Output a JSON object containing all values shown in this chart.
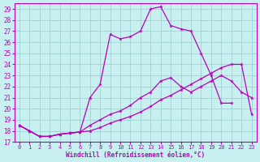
{
  "xlabel": "Windchill (Refroidissement éolien,°C)",
  "ylabel": "",
  "bg_color": "#c8f0f0",
  "line_color": "#bb00bb",
  "xlim": [
    -0.5,
    23.5
  ],
  "ylim": [
    17,
    29.5
  ],
  "yticks": [
    17,
    18,
    19,
    20,
    21,
    22,
    23,
    24,
    25,
    26,
    27,
    28,
    29
  ],
  "xticks": [
    0,
    1,
    2,
    3,
    4,
    5,
    6,
    7,
    8,
    9,
    10,
    11,
    12,
    13,
    14,
    15,
    16,
    17,
    18,
    19,
    20,
    21,
    22,
    23
  ],
  "grid_color": "#99cccc",
  "series": [
    {
      "x": [
        0,
        1,
        2,
        3,
        4,
        5,
        6,
        7,
        8,
        9,
        10,
        11,
        12,
        13,
        14,
        15,
        16,
        17,
        18,
        19,
        20,
        21,
        22,
        23
      ],
      "y": [
        18.5,
        18.0,
        17.5,
        17.5,
        17.7,
        17.8,
        17.9,
        21.0,
        22.2,
        26.7,
        26.3,
        26.5,
        27.0,
        29.0,
        29.2,
        27.5,
        27.2,
        27.0,
        25.0,
        23.0,
        20.5,
        20.5,
        null,
        null
      ]
    },
    {
      "x": [
        0,
        1,
        2,
        3,
        4,
        5,
        6,
        7,
        8,
        9,
        10,
        11,
        12,
        13,
        14,
        15,
        16,
        17,
        18,
        19,
        20,
        21,
        22,
        23
      ],
      "y": [
        18.5,
        18.0,
        17.5,
        17.5,
        17.7,
        17.8,
        17.9,
        18.5,
        19.0,
        19.5,
        19.8,
        20.3,
        21.0,
        21.5,
        22.5,
        22.8,
        22.0,
        21.5,
        22.0,
        22.5,
        23.0,
        22.5,
        21.5,
        21.0
      ]
    },
    {
      "x": [
        0,
        1,
        2,
        3,
        4,
        5,
        6,
        7,
        8,
        9,
        10,
        11,
        12,
        13,
        14,
        15,
        16,
        17,
        18,
        19,
        20,
        21,
        22,
        23
      ],
      "y": [
        18.5,
        18.0,
        17.5,
        17.5,
        17.7,
        17.8,
        17.9,
        18.0,
        18.3,
        18.7,
        19.0,
        19.3,
        19.7,
        20.2,
        20.8,
        21.2,
        21.7,
        22.2,
        22.7,
        23.2,
        23.7,
        24.0,
        24.0,
        19.5
      ]
    }
  ]
}
